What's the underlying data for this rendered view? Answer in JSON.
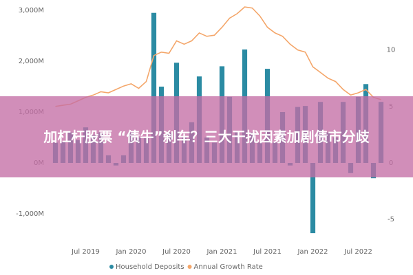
{
  "chart_data": {
    "type": "bar-line",
    "categories": [
      null,
      null,
      null,
      null,
      "Jul 2019",
      null,
      null,
      null,
      null,
      null,
      "Jan 2020",
      null,
      null,
      null,
      null,
      null,
      "Jul 2020",
      null,
      null,
      null,
      null,
      null,
      "Jan 2021",
      null,
      null,
      null,
      null,
      null,
      "Jul 2021",
      null,
      null,
      null,
      null,
      null,
      "Jan 2022",
      null,
      null,
      null,
      null,
      null,
      "Jul 2022",
      null,
      null,
      null
    ],
    "series": [
      {
        "name": "Household Deposits",
        "color": "#2b8ba3",
        "type": "bar",
        "values": [
          400,
          420,
          600,
          450,
          700,
          550,
          600,
          150,
          -50,
          150,
          600,
          500,
          500,
          2950,
          1500,
          600,
          1970,
          500,
          800,
          1700,
          500,
          400,
          1900,
          1300,
          600,
          2230,
          600,
          400,
          1850,
          400,
          1000,
          -50,
          1100,
          1120,
          -1380,
          1200,
          600,
          500,
          1200,
          -200,
          1300,
          1550,
          -300,
          1200
        ]
      },
      {
        "name": "Annual Growth Rate",
        "color": "#f4a66a",
        "type": "line",
        "axis": "y2",
        "values": [
          5.0,
          5.1,
          5.2,
          5.5,
          5.8,
          6.0,
          6.3,
          6.2,
          6.5,
          6.8,
          7.0,
          6.6,
          7.2,
          9.5,
          9.8,
          9.7,
          10.8,
          10.5,
          10.8,
          11.5,
          11.2,
          11.3,
          12.0,
          12.8,
          13.2,
          13.8,
          13.7,
          13.0,
          12.0,
          11.5,
          11.2,
          10.5,
          10.0,
          9.8,
          8.5,
          8.0,
          7.5,
          7.2,
          6.5,
          6.0,
          6.2,
          6.5,
          5.8,
          5.6
        ]
      }
    ],
    "ylim": [
      -1500,
      3000
    ],
    "yticks": [
      {
        "value": -1000,
        "label": "-1,000M"
      },
      {
        "value": 0,
        "label": "0M"
      },
      {
        "value": 1000,
        "label": "1,000M"
      },
      {
        "value": 2000,
        "label": "2,000M"
      },
      {
        "value": 3000,
        "label": "3,000M"
      }
    ],
    "y2lim": [
      -6.75,
      13.5
    ],
    "y2ticks": [
      -5,
      0,
      5,
      10
    ],
    "grid": false
  },
  "overlay": {
    "headline": "加杠杆股票 “债牛”刹车？三大干扰因素加剧债市分歧"
  }
}
